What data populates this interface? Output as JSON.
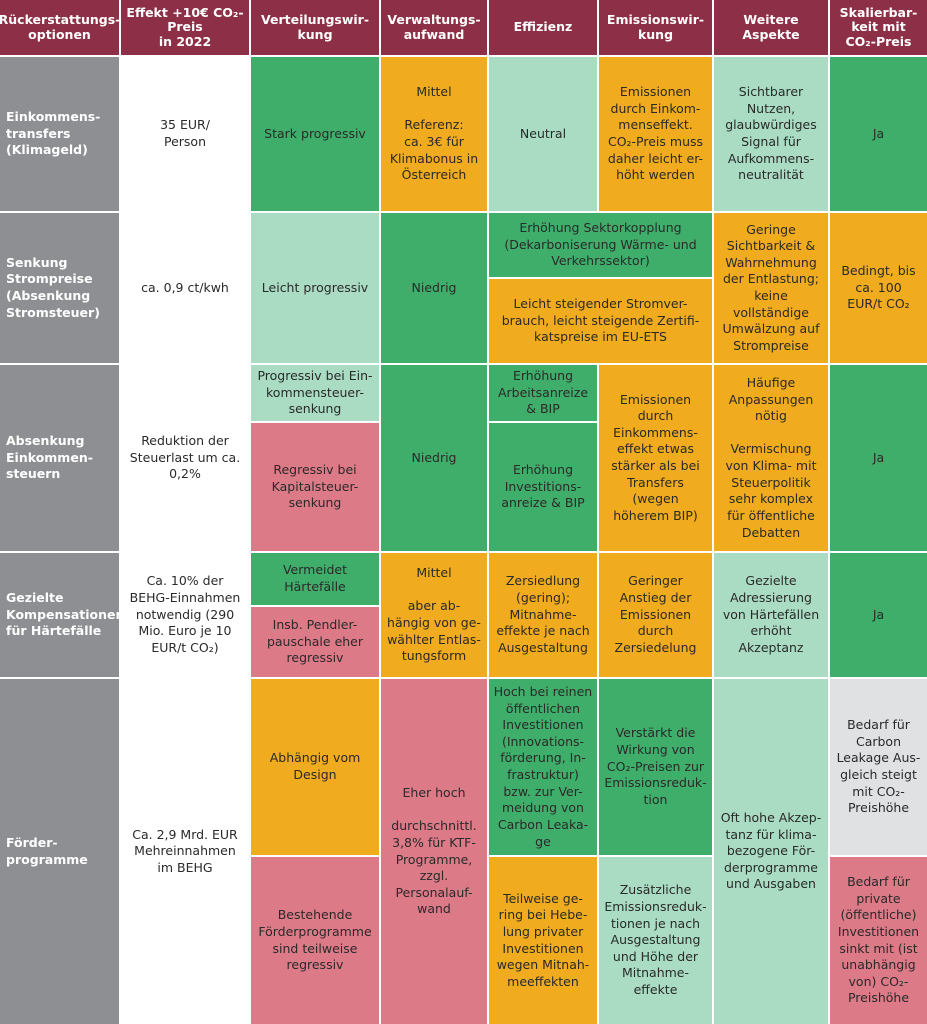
{
  "headers": [
    "Rückerstattungs-\noptionen",
    "Effekt +10€ CO₂-\nPreis\nin 2022",
    "Verteilungswir-\nkung",
    "Verwaltungs-\naufwand",
    "Effizienz",
    "Emissionswir-\nkung",
    "Weitere Aspekte",
    "Skalierbar-\nkeit mit\nCO₂-Preis"
  ],
  "rows": {
    "r1": {
      "label": "Einkommens-\ntransfers\n(Klimageld)",
      "effekt": "35 EUR/\nPerson",
      "verteilung": "Stark progressiv",
      "verwaltung": "Mittel\n\nReferenz:\nca. 3€ für\nKlimabonus in\nÖsterreich",
      "effizienz": "Neutral",
      "emission": "Emissionen\ndurch Einkom-\nmenseffekt.\nCO₂-Preis muss\ndaher leicht er-\nhöht werden",
      "weitere": "Sichtbarer\nNutzen,\nglaubwürdiges\nSignal für\nAufkommens-\nneutralität",
      "skalierbar": "Ja"
    },
    "r2": {
      "label": "Senkung\nStrompreise\n(Absenkung\nStromsteuer)",
      "effekt": "ca. 0,9 ct/kwh",
      "verteilung": "Leicht progressiv",
      "verwaltung": "Niedrig",
      "effizienz_emission_a": "Erhöhung Sektorkopplung\n(Dekarboniserung Wärme- und\nVerkehrssektor)",
      "effizienz_emission_b": "Leicht steigender Stromver-\nbrauch, leicht steigende Zertifi-\nkatspreise im EU-ETS",
      "weitere": "Geringe\nSichtbarkeit &\nWahrnehmung\nder Entlastung;\nkeine\nvollständige\nUmwälzung auf\nStrompreise",
      "skalierbar": "Bedingt, bis\nca. 100\nEUR/t CO₂"
    },
    "r3": {
      "label": "Absenkung\nEinkommen-\nsteuern",
      "effekt": "Reduktion der\nSteuerlast um ca.\n0,2%",
      "verteilung_a": "Progressiv bei Ein-\nkommensteuer-\nsenkung",
      "verteilung_b": "Regressiv bei\nKapitalsteuer-\nsenkung",
      "verwaltung": "Niedrig",
      "effizienz_a": "Erhöhung\nArbeitsanreize\n& BIP",
      "effizienz_b": "Erhöhung\nInvestitions-\nanreize & BIP",
      "emission": "Emissionen\ndurch\nEinkommens-\neffekt etwas\nstärker als bei\nTransfers\n(wegen\nhöherem BIP)",
      "weitere": "Häufige\nAnpassungen\nnötig\n\nVermischung\nvon Klima- mit\nSteuerpolitik\nsehr komplex\nfür öffentliche\nDebatten",
      "skalierbar": "Ja"
    },
    "r4": {
      "label": "Gezielte\nKompensationen\nfür Härtefälle",
      "effekt": "Ca. 10% der\nBEHG-Einnahmen\nnotwendig (290\nMio. Euro je 10\nEUR/t CO₂)",
      "verteilung_a": "Vermeidet\nHärtefälle",
      "verteilung_b": "Insb. Pendler-\npauschale eher\nregressiv",
      "verwaltung": "Mittel\n\naber ab-\nhängig von ge-\nwählter Entlas-\ntungsform",
      "effizienz": "Zersiedlung\n(gering);\nMitnahme-\neffekte je nach\nAusgestaltung",
      "emission": "Geringer\nAnstieg der\nEmissionen\ndurch\nZersiedelung",
      "weitere": "Gezielte\nAdressierung\nvon Härtefällen\nerhöht\nAkzeptanz",
      "skalierbar": "Ja"
    },
    "r5": {
      "label": "Förder-\nprogramme",
      "effekt": "Ca. 2,9 Mrd. EUR\nMehreinnahmen\nim BEHG",
      "verteilung_a": "Abhängig vom\nDesign",
      "verteilung_b": "Bestehende\nFörderprogramme\nsind teilweise\nregressiv",
      "verwaltung": "Eher hoch\n\ndurchschnittl.\n3,8% für KTF-\nProgramme,\nzzgl.\nPersonalauf-\nwand",
      "effizienz_a": "Hoch bei reinen\nöffentlichen\nInvestitionen\n(Innovations-\nförderung, In-\nfrastruktur)\nbzw. zur Ver-\nmeidung von\nCarbon Leaka-\nge",
      "effizienz_b": "Teilweise ge-\nring bei Hebe-\nlung privater\nInvestitionen\nwegen Mitnah-\nmeeffekten",
      "emission_a": "Verstärkt die\nWirkung von\nCO₂-Preisen zur\nEmissionsreduk-\ntion",
      "emission_b": "Zusätzliche\nEmissionsreduk-\ntionen je nach\nAusgestaltung\nund Höhe der\nMitnahme-\neffekte",
      "weitere": "Oft hohe Akzep-\ntanz für klima-\nbezogene För-\nderprogramme\nund Ausgaben",
      "skalierbar_a": "Bedarf für\nCarbon\nLeakage Aus-\ngleich steigt\nmit CO₂-\nPreishöhe",
      "skalierbar_b": "Bedarf für\nprivate\n(öffentliche)\nInvestitionen\nsinkt mit (ist\nunabhängig\nvon) CO₂-\nPreishöhe"
    }
  },
  "colors": {
    "header": "#8d2f46",
    "row_label": "#8e8f93",
    "dark_green": "#3fae6a",
    "light_green": "#a9dcc3",
    "orange": "#f0ab1e",
    "pink": "#dc7a87",
    "light_gray": "#dfe1e3"
  }
}
